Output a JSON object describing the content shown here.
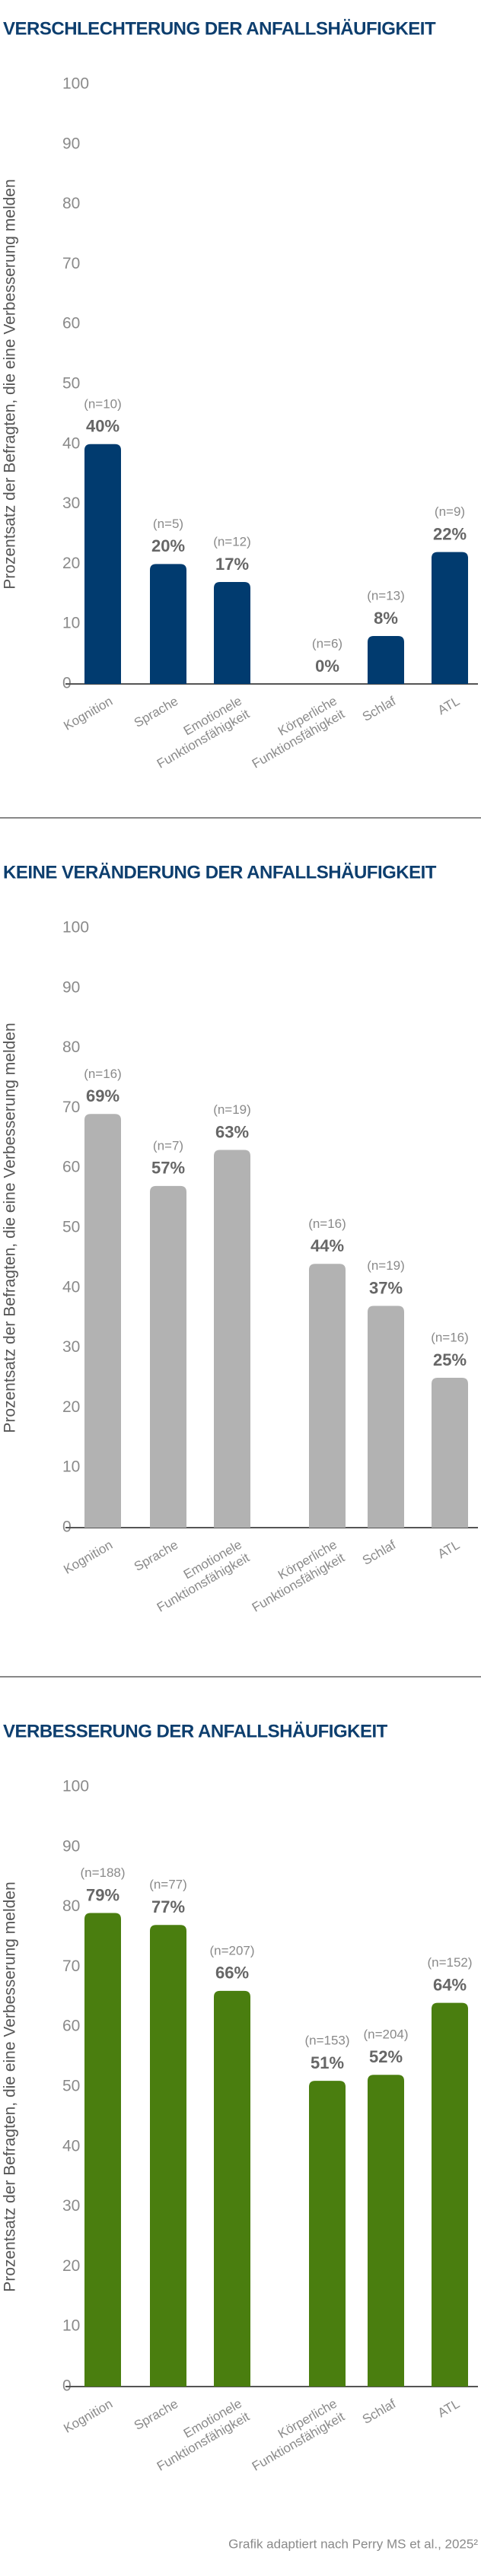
{
  "chart_data": [
    {
      "type": "bar",
      "title": "VERSCHLECHTERUNG DER ANFALLSHÄUFIGKEIT",
      "ylabel": "Prozentsatz der Befragten, die eine Verbesserung melden",
      "categories": [
        "Kognition",
        "Sprache",
        "Emotionele Funktionsfähigkeit",
        "Körperliche Funktionsfähigkeit",
        "Schlaf",
        "ATL"
      ],
      "values": [
        40,
        20,
        17,
        0,
        8,
        22
      ],
      "value_labels": [
        "40%",
        "20%",
        "17%",
        "0%",
        "8%",
        "22%"
      ],
      "n_labels": [
        "(n=10)",
        "(n=5)",
        "(n=12)",
        "(n=6)",
        "(n=13)",
        "(n=9)"
      ],
      "color": "#013b6f",
      "ylim": [
        0,
        100
      ],
      "yticks": [
        0,
        10,
        20,
        30,
        40,
        50,
        60,
        70,
        80,
        90,
        100
      ]
    },
    {
      "type": "bar",
      "title": "KEINE VERÄNDERUNG DER ANFALLSHÄUFIGKEIT",
      "ylabel": "Prozentsatz der Befragten, die eine Verbesserung melden",
      "categories": [
        "Kognition",
        "Sprache",
        "Emotionele Funktionsfähigkeit",
        "Körperliche Funktionsfähigkeit",
        "Schlaf",
        "ATL"
      ],
      "values": [
        69,
        57,
        63,
        44,
        37,
        25
      ],
      "value_labels": [
        "69%",
        "57%",
        "63%",
        "44%",
        "37%",
        "25%"
      ],
      "n_labels": [
        "(n=16)",
        "(n=7)",
        "(n=19)",
        "(n=16)",
        "(n=19)",
        "(n=16)"
      ],
      "color": "#b2b2b2",
      "ylim": [
        0,
        100
      ],
      "yticks": [
        0,
        10,
        20,
        30,
        40,
        50,
        60,
        70,
        80,
        90,
        100
      ]
    },
    {
      "type": "bar",
      "title": "VERBESSERUNG DER ANFALLSHÄUFIGKEIT",
      "ylabel": "Prozentsatz der Befragten, die eine Verbesserung melden",
      "categories": [
        "Kognition",
        "Sprache",
        "Emotionele Funktionsfähigkeit",
        "Körperliche Funktionsfähigkeit",
        "Schlaf",
        "ATL"
      ],
      "values": [
        79,
        77,
        66,
        51,
        52,
        64
      ],
      "value_labels": [
        "79%",
        "77%",
        "66%",
        "51%",
        "52%",
        "64%"
      ],
      "n_labels": [
        "(n=188)",
        "(n=77)",
        "(n=207)",
        "(n=153)",
        "(n=204)",
        "(n=152)"
      ],
      "color": "#4a7e0f",
      "ylim": [
        0,
        100
      ],
      "yticks": [
        0,
        10,
        20,
        30,
        40,
        50,
        60,
        70,
        80,
        90,
        100
      ]
    }
  ],
  "footnote": "Grafik adaptiert nach Perry MS et al., 2025²"
}
